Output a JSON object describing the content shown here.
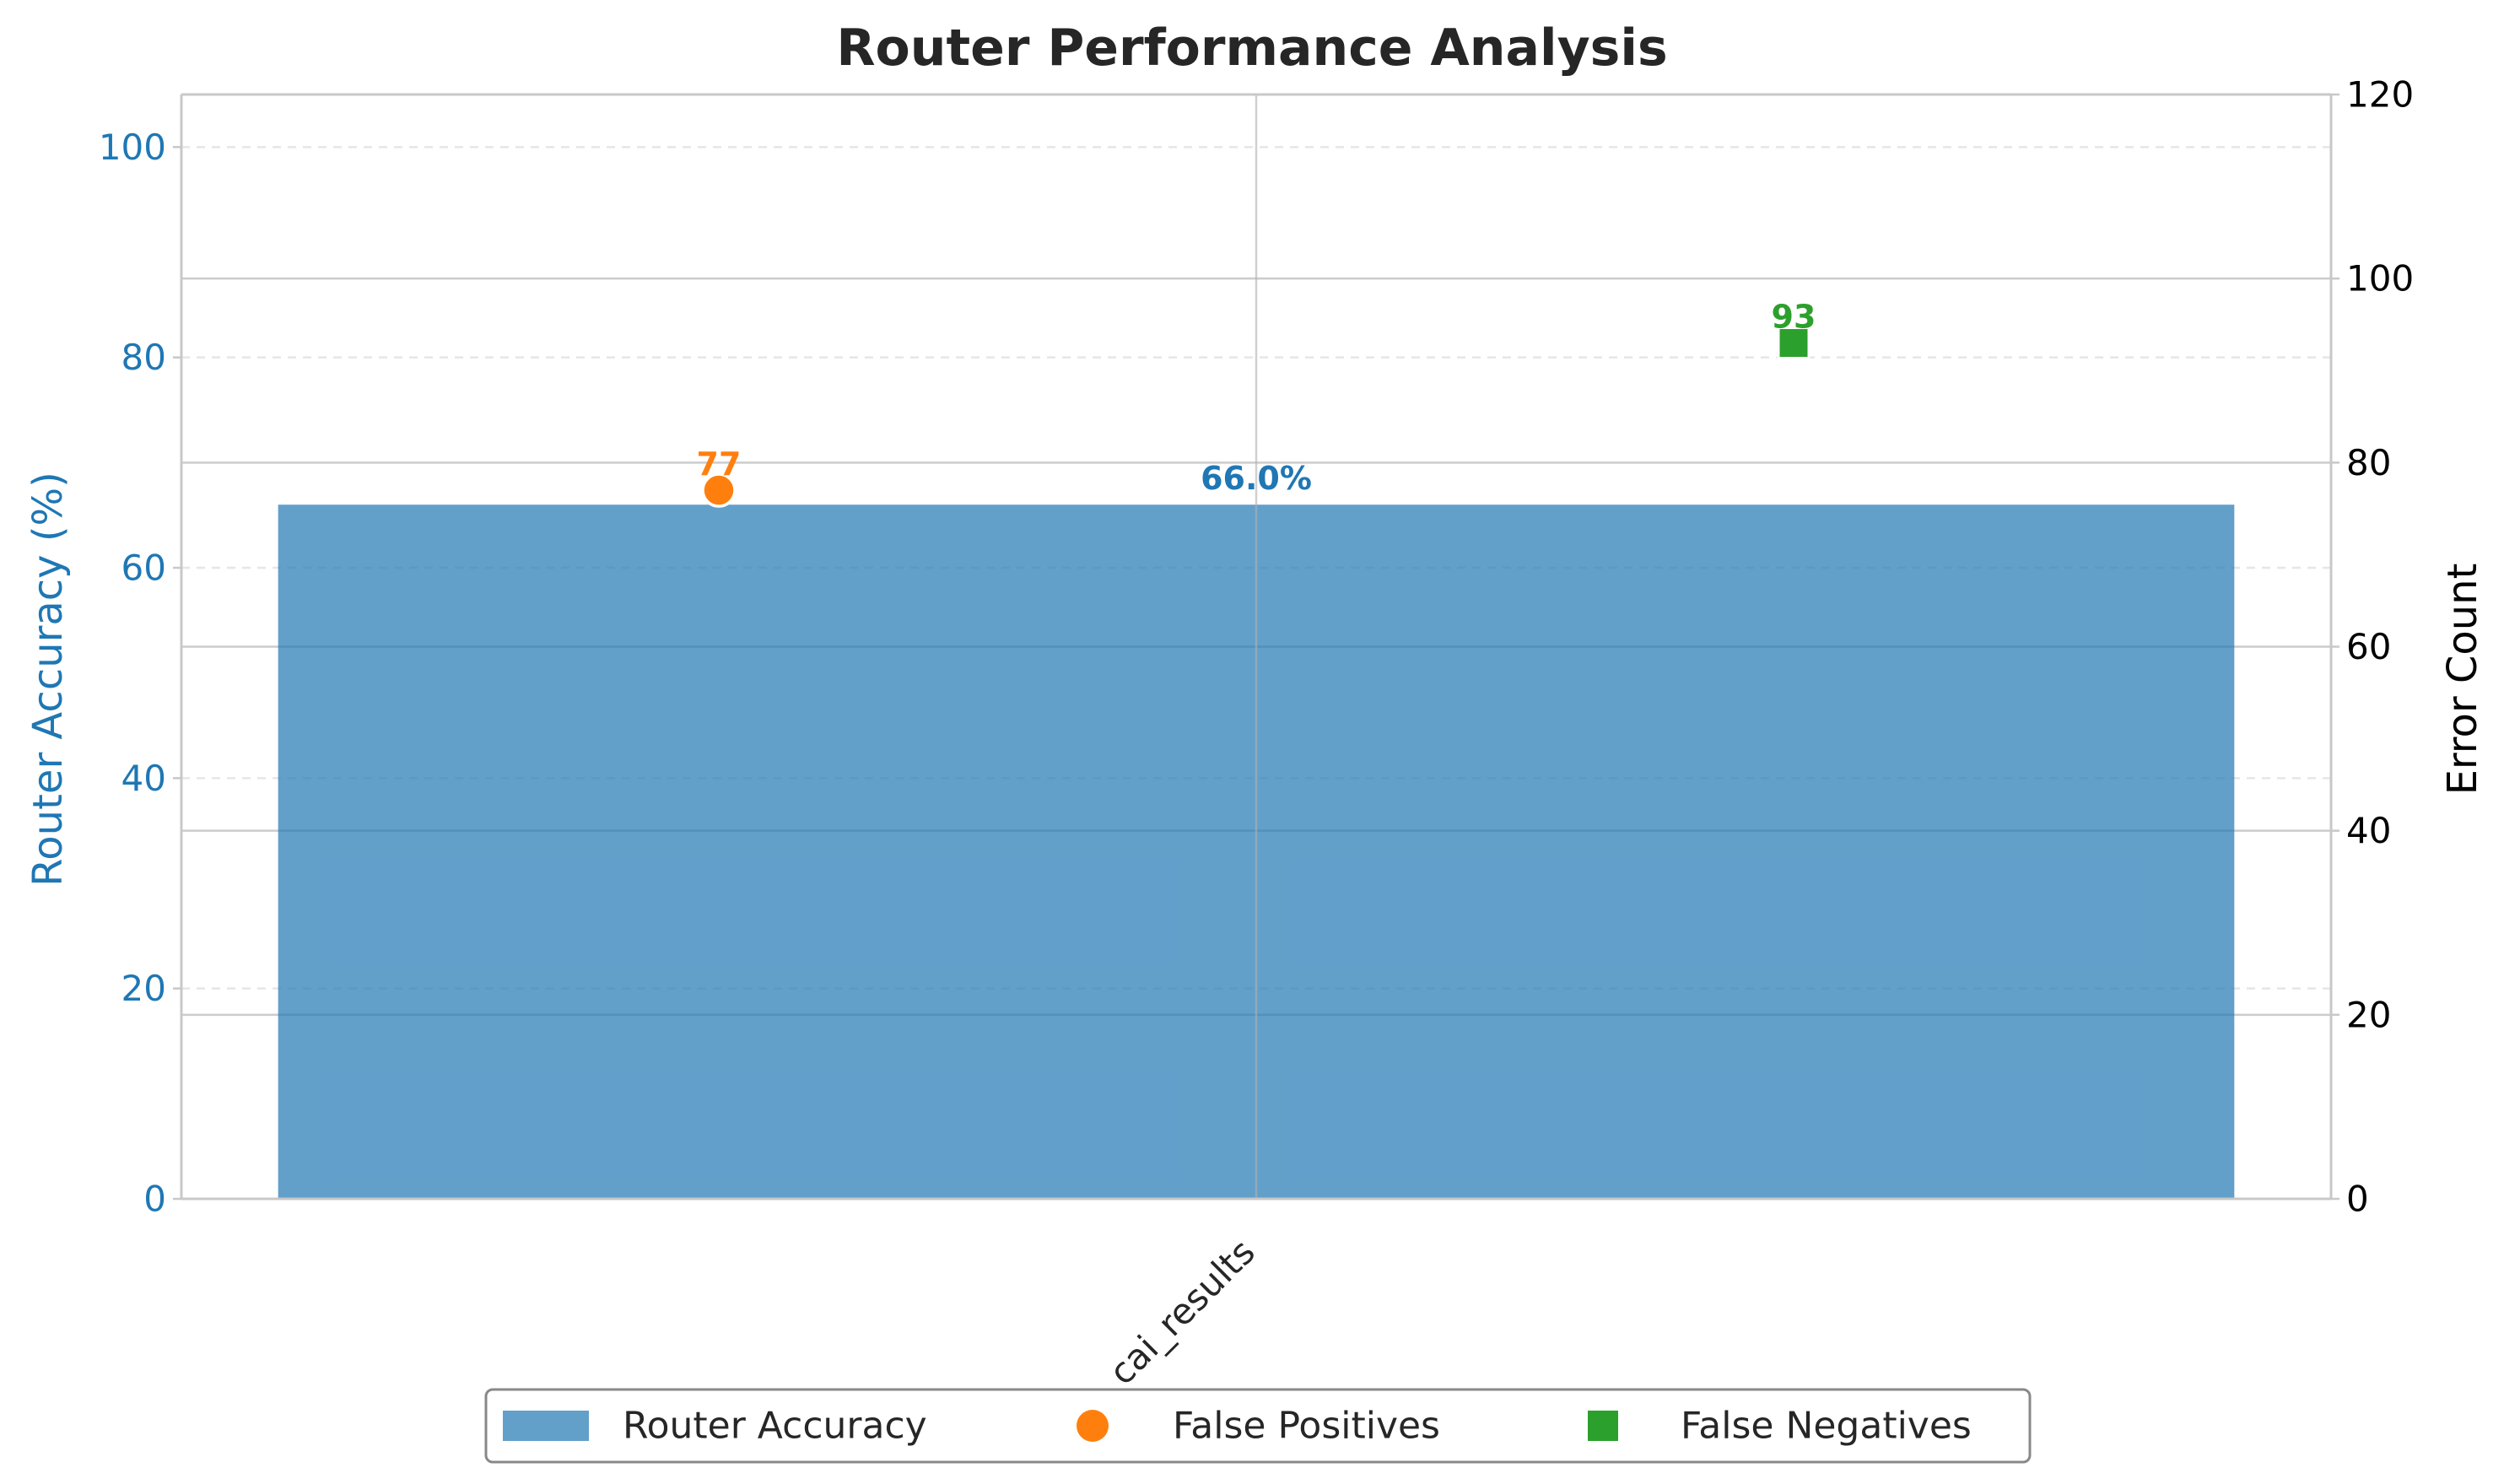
{
  "chart_data": {
    "type": "bar",
    "title": "Router Performance Analysis",
    "categories": [
      "cai_results"
    ],
    "xlabel": "",
    "ylabel_left": "Router Accuracy (%)",
    "ylabel_right": "Error Count",
    "ylim_left": [
      0,
      105
    ],
    "ylim_right": [
      0,
      120
    ],
    "yticks_left": [
      0,
      20,
      40,
      60,
      80,
      100
    ],
    "yticks_right": [
      0,
      20,
      40,
      60,
      80,
      100,
      120
    ],
    "grid": true,
    "legend_placement": "bottom-center",
    "series": [
      {
        "name": "Router Accuracy",
        "kind": "bar",
        "axis": "left",
        "values": [
          66.0
        ],
        "label": "66.0%",
        "color": "#1f77b4"
      },
      {
        "name": "False Positives",
        "kind": "scatter",
        "marker": "circle",
        "axis": "right",
        "values": [
          77
        ],
        "label": "77",
        "color": "#ff7f0e"
      },
      {
        "name": "False Negatives",
        "kind": "scatter",
        "marker": "square",
        "axis": "right",
        "values": [
          93
        ],
        "label": "93",
        "color": "#2ca02c"
      }
    ]
  }
}
